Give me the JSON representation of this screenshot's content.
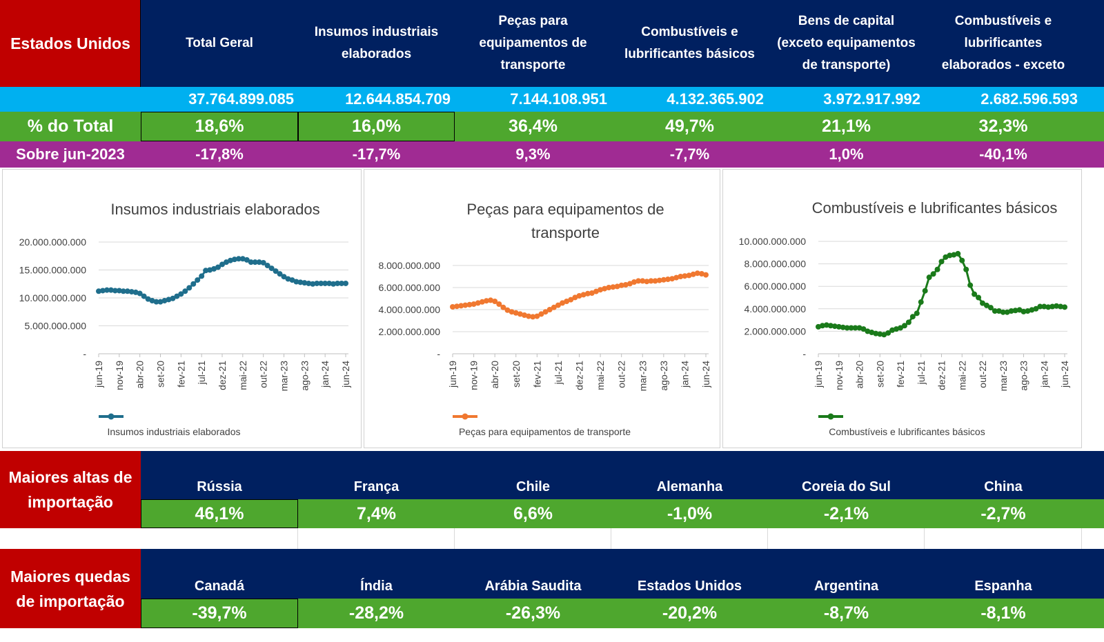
{
  "region": "Estados Unidos",
  "columns": [
    "Total Geral",
    "Insumos industriais elaborados",
    "Peças para equipamentos de transporte",
    "Combustíveis e lubrificantes básicos",
    "Bens de capital (exceto equipamentos de transporte)",
    "Combustíveis e lubrificantes elaborados - exceto"
  ],
  "values": [
    "37.764.899.085",
    "12.644.854.709",
    "7.144.108.951",
    "4.132.365.902",
    "3.972.917.992",
    "2.682.596.593"
  ],
  "share_label": "% do Total",
  "shares": [
    "18,6%",
    "16,0%",
    "36,4%",
    "49,7%",
    "21,1%",
    "32,3%"
  ],
  "change_label": "Sobre jun-2023",
  "changes": [
    "-17,8%",
    "-17,7%",
    "9,3%",
    "-7,7%",
    "1,0%",
    "-40,1%"
  ],
  "highs_label": "Maiores altas de importação",
  "highs_countries": [
    "Rússia",
    "França",
    "Chile",
    "Alemanha",
    "Coreia do Sul",
    "China"
  ],
  "highs_values": [
    "46,1%",
    "7,4%",
    "6,6%",
    "-1,0%",
    "-2,1%",
    "-2,7%"
  ],
  "lows_label": "Maiores quedas de importação",
  "lows_countries": [
    "Canadá",
    "Índia",
    "Arábia Saudita",
    "Estados Unidos",
    "Argentina",
    "Espanha"
  ],
  "lows_values": [
    "-39,7%",
    "-28,2%",
    "-26,3%",
    "-20,2%",
    "-8,7%",
    "-8,1%"
  ],
  "chart_data": [
    {
      "type": "line",
      "title": "Insumos industriais elaborados",
      "color": "#1f6e8c",
      "ylim": [
        0,
        20000000000
      ],
      "yticks": [
        0,
        5000000000,
        10000000000,
        15000000000,
        20000000000
      ],
      "ytick_labels": [
        "-",
        "5.000.000.000",
        "10.000.000.000",
        "15.000.000.000",
        "20.000.000.000"
      ],
      "xtick_labels": [
        "jun-19",
        "nov-19",
        "abr-20",
        "set-20",
        "fev-21",
        "jul-21",
        "dez-21",
        "mai-22",
        "out-22",
        "mar-23",
        "ago-23",
        "jan-24",
        "jun-24"
      ],
      "legend": "bottom",
      "series": [
        {
          "name": "Insumos industriais elaborados",
          "values": [
            11200000000.0,
            11300000000.0,
            11400000000.0,
            11400000000.0,
            11300000000.0,
            11300000000.0,
            11200000000.0,
            11200000000.0,
            11100000000.0,
            11000000000.0,
            10800000000.0,
            10300000000.0,
            9800000000.0,
            9500000000.0,
            9300000000.0,
            9300000000.0,
            9500000000.0,
            9700000000.0,
            9900000000.0,
            10300000000.0,
            10700000000.0,
            11200000000.0,
            11800000000.0,
            12500000000.0,
            13200000000.0,
            13900000000.0,
            14900000000.0,
            15000000000.0,
            15200000000.0,
            15500000000.0,
            16000000000.0,
            16400000000.0,
            16700000000.0,
            16900000000.0,
            17000000000.0,
            17000000000.0,
            16800000000.0,
            16400000000.0,
            16400000000.0,
            16400000000.0,
            16300000000.0,
            15800000000.0,
            15300000000.0,
            14800000000.0,
            14300000000.0,
            13800000000.0,
            13400000000.0,
            13200000000.0,
            12900000000.0,
            12800000000.0,
            12700000000.0,
            12600000000.0,
            12500000000.0,
            12600000000.0,
            12600000000.0,
            12600000000.0,
            12600000000.0,
            12500000000.0,
            12600000000.0,
            12600000000.0,
            12600000000.0
          ]
        }
      ]
    },
    {
      "type": "line",
      "title": "Peças para equipamentos de transporte",
      "color": "#f07830",
      "ylim": [
        0,
        8000000000
      ],
      "yticks": [
        0,
        2000000000,
        4000000000,
        6000000000,
        8000000000
      ],
      "ytick_labels": [
        "-",
        "2.000.000.000",
        "4.000.000.000",
        "6.000.000.000",
        "8.000.000.000"
      ],
      "xtick_labels": [
        "jun-19",
        "nov-19",
        "abr-20",
        "set-20",
        "fev-21",
        "jul-21",
        "dez-21",
        "mai-22",
        "out-22",
        "mar-23",
        "ago-23",
        "jan-24",
        "jun-24"
      ],
      "legend": "bottom",
      "series": [
        {
          "name": "Peças para equipamentos de transporte",
          "values": [
            4250000000.0,
            4300000000.0,
            4350000000.0,
            4400000000.0,
            4450000000.0,
            4500000000.0,
            4600000000.0,
            4700000000.0,
            4800000000.0,
            4850000000.0,
            4750000000.0,
            4500000000.0,
            4200000000.0,
            3950000000.0,
            3800000000.0,
            3700000000.0,
            3600000000.0,
            3500000000.0,
            3400000000.0,
            3350000000.0,
            3400000000.0,
            3600000000.0,
            3800000000.0,
            4000000000.0,
            4200000000.0,
            4400000000.0,
            4600000000.0,
            4750000000.0,
            4900000000.0,
            5100000000.0,
            5250000000.0,
            5350000000.0,
            5450000000.0,
            5500000000.0,
            5650000000.0,
            5800000000.0,
            5900000000.0,
            6000000000.0,
            6050000000.0,
            6100000000.0,
            6200000000.0,
            6250000000.0,
            6350000000.0,
            6500000000.0,
            6600000000.0,
            6600000000.0,
            6550000000.0,
            6600000000.0,
            6600000000.0,
            6650000000.0,
            6700000000.0,
            6750000000.0,
            6800000000.0,
            6900000000.0,
            7000000000.0,
            7050000000.0,
            7100000000.0,
            7200000000.0,
            7300000000.0,
            7250000000.0,
            7150000000.0
          ]
        }
      ]
    },
    {
      "type": "line",
      "title": "Combustíveis e lubrificantes básicos",
      "color": "#1a7a1a",
      "ylim": [
        0,
        10000000000
      ],
      "yticks": [
        0,
        2000000000,
        4000000000,
        6000000000,
        8000000000,
        10000000000
      ],
      "ytick_labels": [
        "-",
        "2.000.000.000",
        "4.000.000.000",
        "6.000.000.000",
        "8.000.000.000",
        "10.000.000.000"
      ],
      "xtick_labels": [
        "jun-19",
        "nov-19",
        "abr-20",
        "set-20",
        "fev-21",
        "jul-21",
        "dez-21",
        "mai-22",
        "out-22",
        "mar-23",
        "ago-23",
        "jan-24",
        "jun-24"
      ],
      "legend": "bottom",
      "series": [
        {
          "name": "Combustíveis e lubrificantes básicos",
          "values": [
            2400000000.0,
            2500000000.0,
            2550000000.0,
            2500000000.0,
            2450000000.0,
            2400000000.0,
            2350000000.0,
            2300000000.0,
            2300000000.0,
            2300000000.0,
            2300000000.0,
            2200000000.0,
            2000000000.0,
            1900000000.0,
            1800000000.0,
            1750000000.0,
            1700000000.0,
            1850000000.0,
            2100000000.0,
            2200000000.0,
            2300000000.0,
            2500000000.0,
            2800000000.0,
            3300000000.0,
            3600000000.0,
            4600000000.0,
            5600000000.0,
            6800000000.0,
            7100000000.0,
            7500000000.0,
            8200000000.0,
            8600000000.0,
            8750000000.0,
            8800000000.0,
            8900000000.0,
            8300000000.0,
            7500000000.0,
            6100000000.0,
            5300000000.0,
            5000000000.0,
            4500000000.0,
            4300000000.0,
            4100000000.0,
            3800000000.0,
            3800000000.0,
            3700000000.0,
            3700000000.0,
            3800000000.0,
            3850000000.0,
            3900000000.0,
            3750000000.0,
            3800000000.0,
            3900000000.0,
            4000000000.0,
            4200000000.0,
            4200000000.0,
            4150000000.0,
            4200000000.0,
            4250000000.0,
            4200000000.0,
            4150000000.0
          ]
        }
      ]
    }
  ]
}
